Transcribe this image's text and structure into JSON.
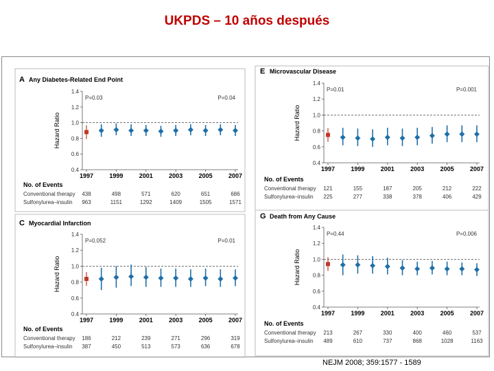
{
  "slide": {
    "title": "UKPDS – 10 años después",
    "citation": "NEJM 2008; 359:1577 - 1589"
  },
  "colors": {
    "conventional": "#c0392b",
    "sulfonylurea": "#1f6fa8",
    "title": "#c00000"
  },
  "chart_data": [
    {
      "type": "scatter",
      "panel_letter": "A",
      "title": "Any Diabetes-Related End Point",
      "ylabel": "Hazard Ratio",
      "ylim": [
        0.4,
        1.4
      ],
      "y_ticks": [
        "0.4",
        "0.6",
        "0.8",
        "1.0",
        "1.2",
        "1.4"
      ],
      "x_ticks": [
        "1997",
        "1999",
        "2001",
        "2003",
        "2005",
        "2007"
      ],
      "p_left": "P=0.03",
      "p_right": "P=0.04",
      "reference": {
        "x": 1997,
        "y": 0.88
      },
      "points": [
        {
          "x": 1998,
          "y": 0.9,
          "lo": 0.82,
          "hi": 0.98
        },
        {
          "x": 1999,
          "y": 0.91,
          "lo": 0.84,
          "hi": 0.99
        },
        {
          "x": 2000,
          "y": 0.9,
          "lo": 0.83,
          "hi": 0.98
        },
        {
          "x": 2001,
          "y": 0.9,
          "lo": 0.83,
          "hi": 0.97
        },
        {
          "x": 2002,
          "y": 0.89,
          "lo": 0.82,
          "hi": 0.96
        },
        {
          "x": 2003,
          "y": 0.9,
          "lo": 0.83,
          "hi": 0.97
        },
        {
          "x": 2004,
          "y": 0.91,
          "lo": 0.84,
          "hi": 0.98
        },
        {
          "x": 2005,
          "y": 0.9,
          "lo": 0.83,
          "hi": 0.97
        },
        {
          "x": 2006,
          "y": 0.91,
          "lo": 0.84,
          "hi": 0.98
        },
        {
          "x": 2007,
          "y": 0.9,
          "lo": 0.83,
          "hi": 0.97
        }
      ],
      "events_title": "No. of Events",
      "events": [
        {
          "label": "Conventional therapy",
          "values": [
            "438",
            "498",
            "571",
            "620",
            "651",
            "686"
          ]
        },
        {
          "label": "Sulfonylurea–insulin",
          "values": [
            "963",
            "1151",
            "1292",
            "1409",
            "1505",
            "1571"
          ]
        }
      ]
    },
    {
      "type": "scatter",
      "panel_letter": "E",
      "title": "Microvascular Disease",
      "ylabel": "Hazard Ratio",
      "ylim": [
        0.4,
        1.4
      ],
      "y_ticks": [
        "0.4",
        "0.6",
        "0.8",
        "1.0",
        "1.2",
        "1.4"
      ],
      "x_ticks": [
        "1997",
        "1999",
        "2001",
        "2003",
        "2005",
        "2007"
      ],
      "p_left": "P=0.01",
      "p_right": "P=0.001",
      "reference": {
        "x": 1997,
        "y": 0.75
      },
      "points": [
        {
          "x": 1998,
          "y": 0.72,
          "lo": 0.62,
          "hi": 0.84
        },
        {
          "x": 1999,
          "y": 0.71,
          "lo": 0.61,
          "hi": 0.83
        },
        {
          "x": 2000,
          "y": 0.7,
          "lo": 0.6,
          "hi": 0.82
        },
        {
          "x": 2001,
          "y": 0.72,
          "lo": 0.62,
          "hi": 0.84
        },
        {
          "x": 2002,
          "y": 0.71,
          "lo": 0.61,
          "hi": 0.83
        },
        {
          "x": 2003,
          "y": 0.72,
          "lo": 0.62,
          "hi": 0.84
        },
        {
          "x": 2004,
          "y": 0.74,
          "lo": 0.64,
          "hi": 0.85
        },
        {
          "x": 2005,
          "y": 0.76,
          "lo": 0.66,
          "hi": 0.87
        },
        {
          "x": 2006,
          "y": 0.76,
          "lo": 0.66,
          "hi": 0.87
        },
        {
          "x": 2007,
          "y": 0.76,
          "lo": 0.66,
          "hi": 0.87
        }
      ],
      "events_title": "No. of Events",
      "events": [
        {
          "label": "Conventional therapy",
          "values": [
            "121",
            "155",
            "187",
            "205",
            "212",
            "222"
          ]
        },
        {
          "label": "Sulfonylurea–insulin",
          "values": [
            "225",
            "277",
            "338",
            "378",
            "406",
            "429"
          ]
        }
      ]
    },
    {
      "type": "scatter",
      "panel_letter": "C",
      "title": "Myocardial Infarction",
      "ylabel": "Hazard Ratio",
      "ylim": [
        0.4,
        1.4
      ],
      "y_ticks": [
        "0.4",
        "0.6",
        "0.8",
        "1.0",
        "1.2",
        "1.4"
      ],
      "x_ticks": [
        "1997",
        "1999",
        "2001",
        "2003",
        "2005",
        "2007"
      ],
      "p_left": "P=0.052",
      "p_right": "P=0.01",
      "reference": {
        "x": 1997,
        "y": 0.84
      },
      "points": [
        {
          "x": 1998,
          "y": 0.84,
          "lo": 0.7,
          "hi": 0.98
        },
        {
          "x": 1999,
          "y": 0.86,
          "lo": 0.73,
          "hi": 1.0
        },
        {
          "x": 2000,
          "y": 0.87,
          "lo": 0.75,
          "hi": 1.02
        },
        {
          "x": 2001,
          "y": 0.86,
          "lo": 0.74,
          "hi": 0.99
        },
        {
          "x": 2002,
          "y": 0.85,
          "lo": 0.74,
          "hi": 0.97
        },
        {
          "x": 2003,
          "y": 0.85,
          "lo": 0.74,
          "hi": 0.97
        },
        {
          "x": 2004,
          "y": 0.84,
          "lo": 0.74,
          "hi": 0.96
        },
        {
          "x": 2005,
          "y": 0.85,
          "lo": 0.75,
          "hi": 0.97
        },
        {
          "x": 2006,
          "y": 0.84,
          "lo": 0.74,
          "hi": 0.96
        },
        {
          "x": 2007,
          "y": 0.85,
          "lo": 0.75,
          "hi": 0.96
        }
      ],
      "events_title": "No. of Events",
      "events": [
        {
          "label": "Conventional therapy",
          "values": [
            "186",
            "212",
            "239",
            "271",
            "296",
            "319"
          ]
        },
        {
          "label": "Sulfonylurea–insulin",
          "values": [
            "387",
            "450",
            "513",
            "573",
            "636",
            "678"
          ]
        }
      ]
    },
    {
      "type": "scatter",
      "panel_letter": "G",
      "title": "Death from Any Cause",
      "ylabel": "Hazard Ratio",
      "ylim": [
        0.4,
        1.4
      ],
      "y_ticks": [
        "0.4",
        "0.6",
        "0.8",
        "1.0",
        "1.2",
        "1.4"
      ],
      "x_ticks": [
        "1997",
        "1999",
        "2001",
        "2003",
        "2005",
        "2007"
      ],
      "p_left": "P=0.44",
      "p_right": "P=0.006",
      "reference": {
        "x": 1997,
        "y": 0.94
      },
      "points": [
        {
          "x": 1998,
          "y": 0.93,
          "lo": 0.8,
          "hi": 1.06
        },
        {
          "x": 1999,
          "y": 0.93,
          "lo": 0.82,
          "hi": 1.05
        },
        {
          "x": 2000,
          "y": 0.92,
          "lo": 0.82,
          "hi": 1.04
        },
        {
          "x": 2001,
          "y": 0.91,
          "lo": 0.81,
          "hi": 1.02
        },
        {
          "x": 2002,
          "y": 0.89,
          "lo": 0.8,
          "hi": 0.99
        },
        {
          "x": 2003,
          "y": 0.88,
          "lo": 0.8,
          "hi": 0.97
        },
        {
          "x": 2004,
          "y": 0.89,
          "lo": 0.81,
          "hi": 0.98
        },
        {
          "x": 2005,
          "y": 0.88,
          "lo": 0.8,
          "hi": 0.97
        },
        {
          "x": 2006,
          "y": 0.88,
          "lo": 0.8,
          "hi": 0.96
        },
        {
          "x": 2007,
          "y": 0.87,
          "lo": 0.79,
          "hi": 0.95
        }
      ],
      "events_title": "No. of Events",
      "events": [
        {
          "label": "Conventional therapy",
          "values": [
            "213",
            "267",
            "330",
            "400",
            "460",
            "537"
          ]
        },
        {
          "label": "Sulfonylurea–insulin",
          "values": [
            "489",
            "610",
            "737",
            "868",
            "1028",
            "1163"
          ]
        }
      ]
    }
  ]
}
